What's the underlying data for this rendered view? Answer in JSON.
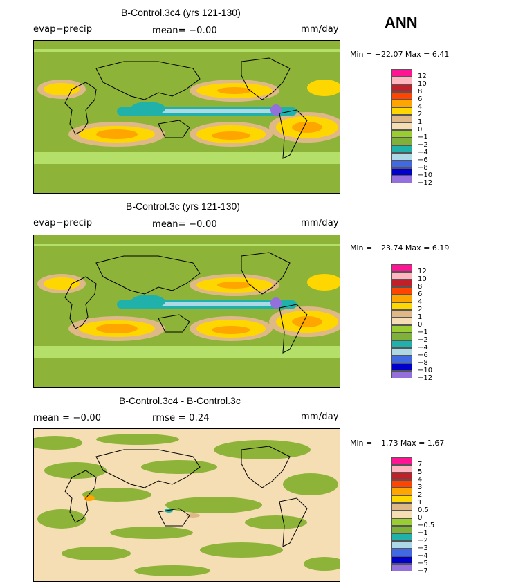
{
  "season": "ANN",
  "panels": [
    {
      "title": "B-Control.3c4 (yrs 121-130)",
      "left_label": "evap−precip",
      "middle_label": "mean=  −0.00",
      "units": "mm/day",
      "stats": "Min = −22.07 Max =     6.41",
      "legend_levels": [
        "12",
        "10",
        "8",
        "6",
        "4",
        "2",
        "1",
        "0",
        "−1",
        "−2",
        "−4",
        "−6",
        "−8",
        "−10",
        "−12"
      ]
    },
    {
      "title": "B-Control.3c (yrs 121-130)",
      "left_label": "evap−precip",
      "middle_label": "mean=  −0.00",
      "units": "mm/day",
      "stats": "Min = −23.74 Max =     6.19",
      "legend_levels": [
        "12",
        "10",
        "8",
        "6",
        "4",
        "2",
        "1",
        "0",
        "−1",
        "−2",
        "−4",
        "−6",
        "−8",
        "−10",
        "−12"
      ]
    },
    {
      "title": "B-Control.3c4 - B-Control.3c",
      "left_label": "mean =  −0.00",
      "middle_label": "rmse =    0.24",
      "units": "mm/day",
      "stats": "Min =  −1.73 Max =    1.67",
      "legend_levels": [
        "7",
        "5",
        "4",
        "3",
        "2",
        "1",
        "0.5",
        "0",
        "−0.5",
        "−1",
        "−2",
        "−3",
        "−4",
        "−5",
        "−7"
      ]
    }
  ],
  "colors": {
    "scale": [
      "#ff1493",
      "#ffb6c1",
      "#c0202a",
      "#ff4500",
      "#ffa500",
      "#ffd700",
      "#deb887",
      "#f5deb3",
      "#9acd32",
      "#7fb03a",
      "#20b2aa",
      "#add8e6",
      "#4169e1",
      "#0000cd",
      "#9370db"
    ],
    "outline": "#000000"
  },
  "chart_data": [
    {
      "type": "heatmap",
      "title": "B-Control.3c4 (yrs 121-130)",
      "variable": "evap−precip",
      "units": "mm/day",
      "mean": -0.0,
      "min": -22.07,
      "max": 6.41,
      "contour_levels": [
        12,
        10,
        8,
        6,
        4,
        2,
        1,
        0,
        -1,
        -2,
        -4,
        -6,
        -8,
        -10,
        -12
      ]
    },
    {
      "type": "heatmap",
      "title": "B-Control.3c (yrs 121-130)",
      "variable": "evap−precip",
      "units": "mm/day",
      "mean": -0.0,
      "min": -23.74,
      "max": 6.19,
      "contour_levels": [
        12,
        10,
        8,
        6,
        4,
        2,
        1,
        0,
        -1,
        -2,
        -4,
        -6,
        -8,
        -10,
        -12
      ]
    },
    {
      "type": "heatmap",
      "title": "B-Control.3c4 - B-Control.3c",
      "units": "mm/day",
      "mean": -0.0,
      "rmse": 0.24,
      "min": -1.73,
      "max": 1.67,
      "contour_levels": [
        7,
        5,
        4,
        3,
        2,
        1,
        0.5,
        0,
        -0.5,
        -1,
        -2,
        -3,
        -4,
        -5,
        -7
      ]
    }
  ]
}
